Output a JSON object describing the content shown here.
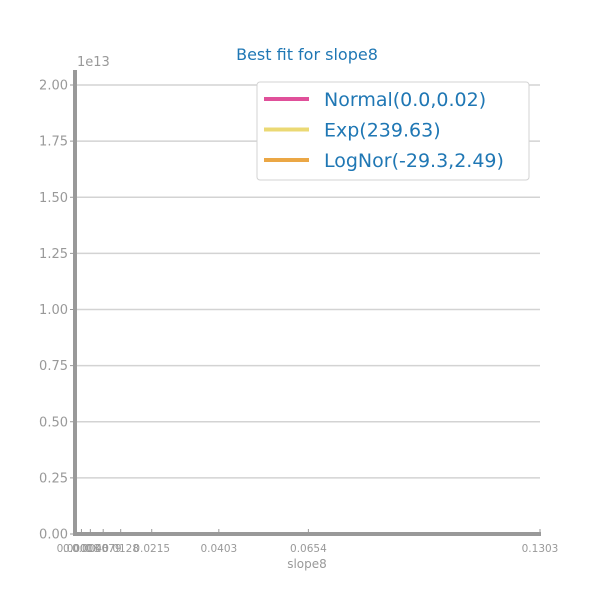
{
  "colors": {
    "axis": "#999999",
    "grid": "#d3d3d3",
    "title": "#1f77b4",
    "legend_text": "#1f77b4",
    "tick_text": "#999999"
  },
  "chart_data": {
    "type": "line",
    "title": "Best fit for slope8",
    "xlabel": "slope8",
    "ylabel": "",
    "y_offset_label": "1e13",
    "xlim": [
      0,
      0.1303
    ],
    "ylim": [
      0,
      2.0
    ],
    "y_scale_multiplier": "1e13",
    "grid": true,
    "legend_position": "top-right",
    "yticks": [
      0.0,
      0.25,
      0.5,
      0.75,
      1.0,
      1.25,
      1.5,
      1.75,
      2.0
    ],
    "ytick_labels": [
      "0.00",
      "0.25",
      "0.50",
      "0.75",
      "1.00",
      "1.25",
      "1.50",
      "1.75",
      "2.00"
    ],
    "xticks": [
      0.0,
      0.0018,
      0.0043,
      0.0079,
      0.0128,
      0.0215,
      0.0403,
      0.0654,
      0.1303
    ],
    "xtick_labels": [
      "0.0000",
      "0.0018",
      "0.0043",
      "0.0079",
      "0.0128",
      "0.0215",
      "0.0403",
      "0.0654",
      "0.1303"
    ],
    "series": [
      {
        "name": "Normal(0.0,0.02)",
        "color": "#e0509a"
      },
      {
        "name": "Exp(239.63)",
        "color": "#ebd974"
      },
      {
        "name": "LogNor(-29.3,2.49)",
        "color": "#eba745"
      }
    ]
  }
}
